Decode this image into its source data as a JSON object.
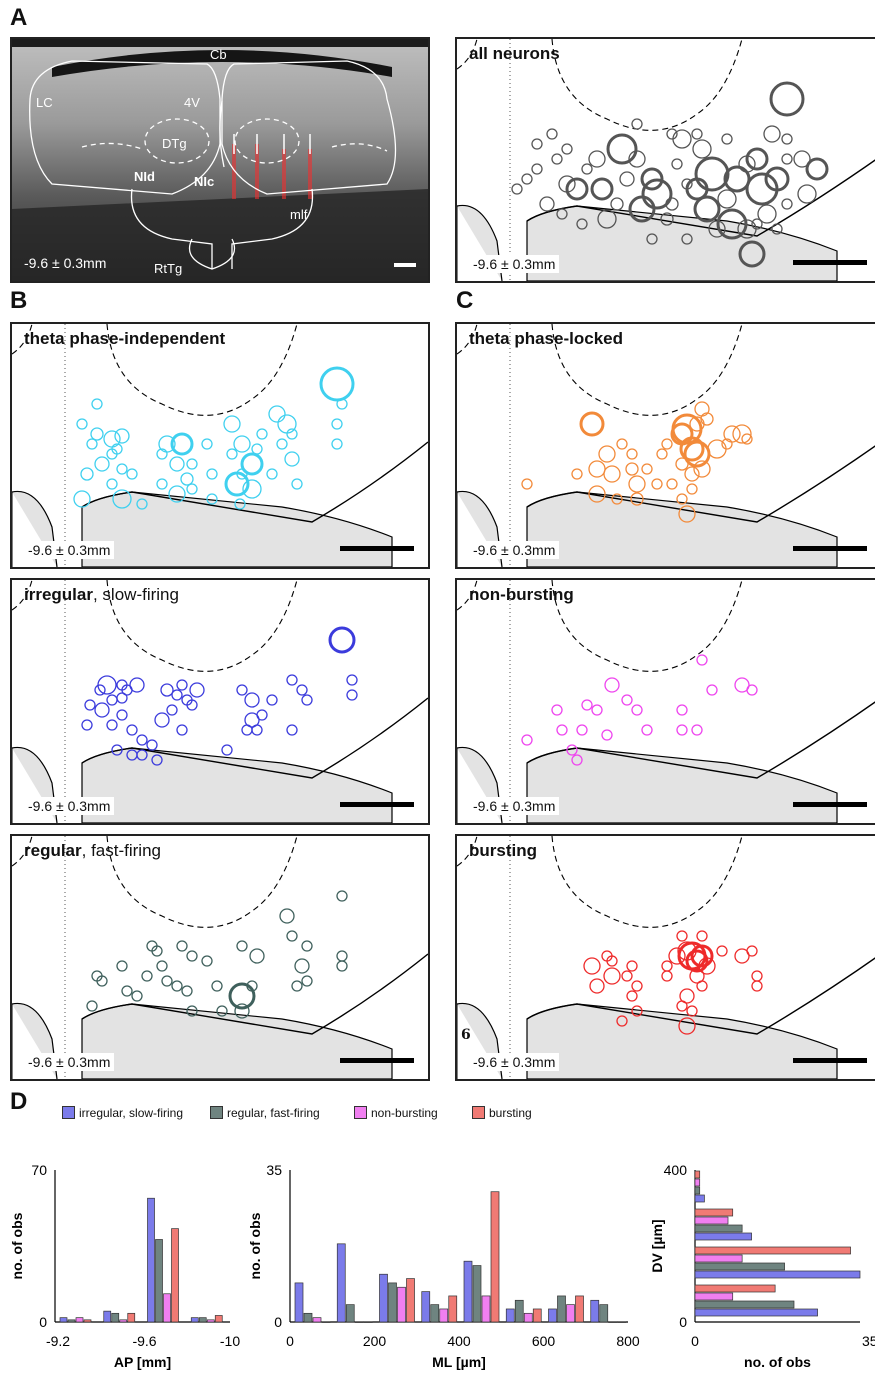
{
  "panels": {
    "A": "A",
    "B": "B",
    "C": "C",
    "D": "D"
  },
  "micrograph": {
    "labels": {
      "cb": "Cb",
      "v4": "4V",
      "lc": "LC",
      "dtg": "DTg",
      "nid": "NId",
      "nic": "NIc",
      "mlf": "mlf",
      "rttg": "RtTg"
    },
    "coord": "-9.6 ± 0.3mm"
  },
  "maps": [
    {
      "id": "all",
      "title_bold": "all neurons",
      "title_rest": "",
      "color": "#555555",
      "coord": "-9.6 ± 0.3mm"
    },
    {
      "id": "theta-ind",
      "title_bold": "theta phase-independent",
      "title_rest": "",
      "color": "#3fd0ef",
      "coord": "-9.6 ± 0.3mm"
    },
    {
      "id": "theta-locked",
      "title_bold": "theta phase-locked",
      "title_rest": "",
      "color": "#f28a3a",
      "coord": "-9.6 ± 0.3mm"
    },
    {
      "id": "irregular",
      "title_bold": "irregular",
      "title_rest": ", slow-firing",
      "color": "#3b3bdc",
      "coord": "-9.6 ± 0.3mm"
    },
    {
      "id": "non-bursting",
      "title_bold": "non-bursting",
      "title_rest": "",
      "color": "#ee44ee",
      "coord": "-9.6 ± 0.3mm"
    },
    {
      "id": "regular",
      "title_bold": "regular",
      "title_rest": ", fast-firing",
      "color": "#3f605c",
      "coord": "-9.6 ± 0.3mm"
    },
    {
      "id": "bursting",
      "title_bold": "bursting",
      "title_rest": "",
      "color": "#ee2a2a",
      "coord": "-9.6 ± 0.3mm",
      "stray": "6"
    }
  ],
  "legend": [
    {
      "label": "irregular, slow-firing",
      "color": "#7b7bea"
    },
    {
      "label": "regular, fast-firing",
      "color": "#6f8480"
    },
    {
      "label": "non-bursting",
      "color": "#f07ff0"
    },
    {
      "label": "bursting",
      "color": "#f07a74"
    }
  ],
  "chart_data": [
    {
      "type": "bar",
      "xlabel": "AP [mm]",
      "ylabel": "no. of obs",
      "ylim": [
        0,
        70
      ],
      "yticks": [
        "0",
        "70"
      ],
      "xticks": [
        "-9.2",
        "-9.6",
        "-10"
      ],
      "categories": [
        "-9.2",
        "-9.4",
        "-9.6",
        "-9.8"
      ],
      "series": [
        {
          "name": "irregular, slow-firing",
          "values": [
            2,
            5,
            57,
            2
          ]
        },
        {
          "name": "regular, fast-firing",
          "values": [
            1,
            4,
            38,
            2
          ]
        },
        {
          "name": "non-bursting",
          "values": [
            2,
            1,
            13,
            1
          ]
        },
        {
          "name": "bursting",
          "values": [
            1,
            4,
            43,
            3
          ]
        }
      ]
    },
    {
      "type": "bar",
      "xlabel": "ML [µm]",
      "ylabel": "no. of obs",
      "ylim": [
        0,
        35
      ],
      "yticks": [
        "0",
        "35"
      ],
      "xticks": [
        "0",
        "200",
        "400",
        "600",
        "800"
      ],
      "categories": [
        "0",
        "100",
        "200",
        "300",
        "400",
        "500",
        "600",
        "700"
      ],
      "series": [
        {
          "name": "irregular, slow-firing",
          "values": [
            9,
            18,
            11,
            7,
            14,
            3,
            3,
            5
          ]
        },
        {
          "name": "regular, fast-firing",
          "values": [
            2,
            4,
            9,
            4,
            13,
            5,
            6,
            4
          ]
        },
        {
          "name": "non-bursting",
          "values": [
            1,
            0,
            8,
            3,
            6,
            2,
            4,
            0
          ]
        },
        {
          "name": "bursting",
          "values": [
            0,
            0,
            10,
            6,
            30,
            3,
            6,
            0
          ]
        }
      ]
    },
    {
      "type": "bar",
      "orientation": "horizontal",
      "xlabel": "no. of obs",
      "ylabel": "DV [µm]",
      "xlim": [
        0,
        35
      ],
      "xticks": [
        "0",
        "35"
      ],
      "yticks": [
        "0",
        "400"
      ],
      "categories": [
        "50",
        "150",
        "250",
        "350"
      ],
      "series": [
        {
          "name": "irregular, slow-firing",
          "values": [
            26,
            35,
            12,
            2
          ]
        },
        {
          "name": "regular, fast-firing",
          "values": [
            21,
            19,
            10,
            1
          ]
        },
        {
          "name": "non-bursting",
          "values": [
            8,
            10,
            7,
            1
          ]
        },
        {
          "name": "bursting",
          "values": [
            17,
            33,
            8,
            1
          ]
        }
      ]
    }
  ]
}
